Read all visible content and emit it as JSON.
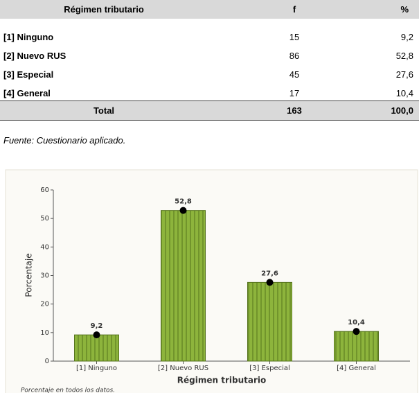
{
  "table": {
    "header": [
      "Régimen tributario",
      "f",
      "%"
    ],
    "rows": [
      [
        "[1] Ninguno",
        "15",
        "9,2"
      ],
      [
        "[2] Nuevo RUS",
        "86",
        "52,8"
      ],
      [
        "[3] Especial",
        "45",
        "27,6"
      ],
      [
        "[4] General",
        "17",
        "10,4"
      ]
    ],
    "total": [
      "Total",
      "163",
      "100,0"
    ]
  },
  "source": "Fuente: Cuestionario aplicado.",
  "chart_data": {
    "type": "bar",
    "categories": [
      "[1] Ninguno",
      "[2] Nuevo RUS",
      "[3] Especial",
      "[4] General"
    ],
    "values": [
      9.2,
      52.8,
      27.6,
      10.4
    ],
    "value_labels": [
      "9,2",
      "52,8",
      "27,6",
      "10,4"
    ],
    "color": "#8db43c",
    "ylim": [
      0,
      60
    ],
    "yticks": [
      0,
      10,
      20,
      30,
      40,
      50,
      60
    ],
    "xlabel": "Régimen tributario",
    "ylabel": "Porcentaje",
    "note": "Porcentaje en todos los datos."
  }
}
